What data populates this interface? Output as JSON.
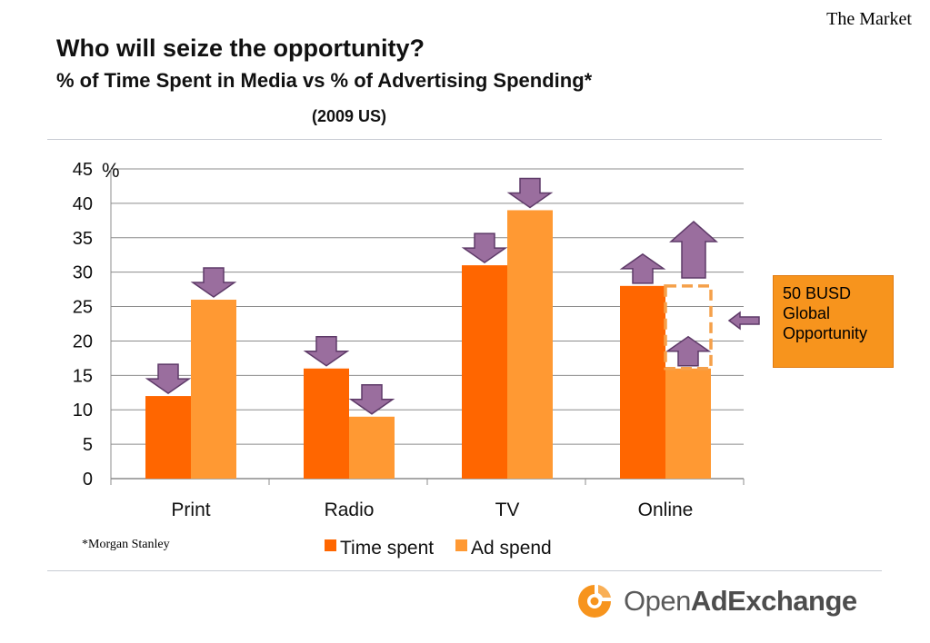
{
  "header": {
    "corner_label": "The Market",
    "title": "Who will seize the opportunity?",
    "subtitle": "% of Time Spent in Media vs % of Advertising Spending*",
    "region_label": "(2009 US)"
  },
  "chart_data": {
    "type": "bar",
    "title": "",
    "xlabel": "",
    "ylabel": "%",
    "ylim": [
      0,
      45
    ],
    "yticks": [
      0,
      5,
      10,
      15,
      20,
      25,
      30,
      35,
      40,
      45
    ],
    "grid": true,
    "legend_position": "bottom",
    "categories": [
      "Print",
      "Radio",
      "TV",
      "Online"
    ],
    "series": [
      {
        "name": "Time spent",
        "color": "#ff6600",
        "values": [
          12,
          16,
          31,
          28
        ],
        "trend": [
          "down",
          "down",
          "down",
          "up"
        ]
      },
      {
        "name": "Ad spend",
        "color": "#ff9933",
        "values": [
          26,
          9,
          39,
          16
        ],
        "trend": [
          "down",
          "down",
          "down",
          "up"
        ]
      }
    ],
    "annotation": {
      "category": "Online",
      "series": "Ad spend",
      "gap_range": [
        16,
        28
      ],
      "text_lines": [
        "50 BUSD",
        "Global",
        "Opportunity"
      ]
    }
  },
  "footnote": "*Morgan Stanley",
  "logo": {
    "text_regular": "Open",
    "text_bold": "AdExchange"
  },
  "colors": {
    "arrow_fill": "#9a6e9e",
    "arrow_stroke": "#5e3a68",
    "grid": "#8c8c8c",
    "callout": "#f7941d"
  }
}
